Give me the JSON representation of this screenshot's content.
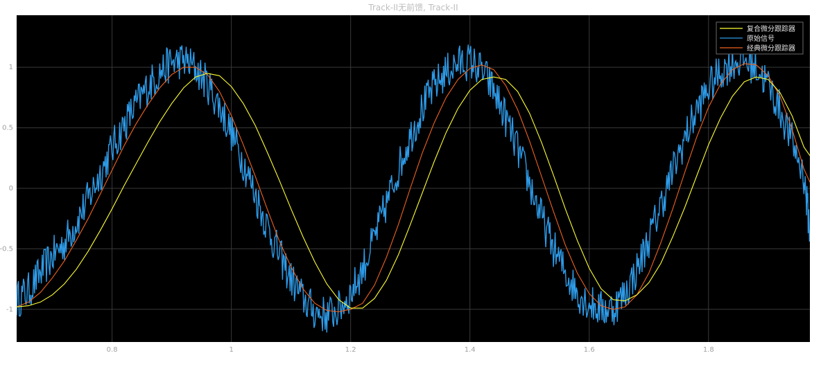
{
  "chart_data": {
    "type": "line",
    "title": "Track-II无前馈, Track-II",
    "xlabel": "",
    "ylabel": "",
    "xlim": [
      0.64,
      1.97
    ],
    "ylim": [
      -1.27,
      1.43
    ],
    "x_ticks": [
      0.8,
      1,
      1.2,
      1.4,
      1.6,
      1.8
    ],
    "x_tick_labels": [
      "0.8",
      "1",
      "1.2",
      "1.4",
      "1.6",
      "1.8"
    ],
    "y_ticks": [
      1,
      0.5,
      0,
      -0.5,
      -1
    ],
    "y_tick_labels": [
      "1",
      "0.5",
      "0",
      "-0.5",
      "-1"
    ],
    "grid": true,
    "legend_position": "top-right",
    "background": "#000000",
    "series": [
      {
        "name": "复合微分跟踪器",
        "color": "#ffff33",
        "x": [
          0.64,
          0.66,
          0.68,
          0.7,
          0.72,
          0.74,
          0.76,
          0.78,
          0.8,
          0.82,
          0.84,
          0.86,
          0.88,
          0.9,
          0.92,
          0.94,
          0.96,
          0.98,
          1.0,
          1.02,
          1.04,
          1.06,
          1.08,
          1.1,
          1.12,
          1.14,
          1.16,
          1.18,
          1.2,
          1.22,
          1.24,
          1.26,
          1.28,
          1.3,
          1.32,
          1.34,
          1.36,
          1.38,
          1.4,
          1.42,
          1.44,
          1.46,
          1.48,
          1.5,
          1.52,
          1.54,
          1.56,
          1.58,
          1.6,
          1.62,
          1.64,
          1.66,
          1.68,
          1.7,
          1.72,
          1.74,
          1.76,
          1.78,
          1.8,
          1.82,
          1.84,
          1.86,
          1.88,
          1.9,
          1.92,
          1.94,
          1.96,
          1.97
        ],
        "y": [
          -0.98,
          -0.97,
          -0.94,
          -0.88,
          -0.79,
          -0.67,
          -0.52,
          -0.35,
          -0.17,
          0.02,
          0.2,
          0.38,
          0.55,
          0.7,
          0.83,
          0.92,
          0.95,
          0.93,
          0.84,
          0.7,
          0.52,
          0.3,
          0.07,
          -0.17,
          -0.4,
          -0.61,
          -0.79,
          -0.92,
          -0.99,
          -0.99,
          -0.91,
          -0.76,
          -0.55,
          -0.3,
          -0.04,
          0.22,
          0.46,
          0.66,
          0.81,
          0.9,
          0.92,
          0.9,
          0.8,
          0.62,
          0.38,
          0.11,
          -0.17,
          -0.43,
          -0.66,
          -0.83,
          -0.92,
          -0.93,
          -0.88,
          -0.78,
          -0.62,
          -0.4,
          -0.16,
          0.1,
          0.36,
          0.58,
          0.76,
          0.88,
          0.92,
          0.9,
          0.79,
          0.6,
          0.34,
          0.27
        ]
      },
      {
        "name": "原始信号",
        "color": "#2e9be8",
        "x": [
          0.64,
          0.66,
          0.68,
          0.7,
          0.72,
          0.74,
          0.76,
          0.78,
          0.8,
          0.82,
          0.84,
          0.86,
          0.88,
          0.9,
          0.92,
          0.94,
          0.96,
          0.98,
          1.0,
          1.02,
          1.04,
          1.06,
          1.08,
          1.1,
          1.12,
          1.14,
          1.16,
          1.18,
          1.2,
          1.22,
          1.24,
          1.26,
          1.28,
          1.3,
          1.32,
          1.34,
          1.36,
          1.38,
          1.4,
          1.42,
          1.44,
          1.46,
          1.48,
          1.5,
          1.52,
          1.54,
          1.56,
          1.58,
          1.6,
          1.62,
          1.64,
          1.66,
          1.68,
          1.7,
          1.72,
          1.74,
          1.76,
          1.78,
          1.8,
          1.82,
          1.84,
          1.86,
          1.88,
          1.9,
          1.92,
          1.94,
          1.96,
          1.97
        ],
        "y": [
          -0.92,
          -0.85,
          -0.7,
          -0.56,
          -0.45,
          -0.28,
          -0.09,
          0.12,
          0.33,
          0.52,
          0.69,
          0.84,
          0.96,
          1.04,
          1.06,
          0.99,
          0.86,
          0.68,
          0.46,
          0.22,
          -0.05,
          -0.31,
          -0.55,
          -0.75,
          -0.91,
          -1.02,
          -1.05,
          -1.0,
          -0.87,
          -0.67,
          -0.41,
          -0.13,
          0.16,
          0.43,
          0.66,
          0.84,
          0.96,
          1.03,
          1.05,
          0.97,
          0.81,
          0.58,
          0.32,
          0.04,
          -0.24,
          -0.49,
          -0.7,
          -0.86,
          -0.95,
          -1.0,
          -0.99,
          -0.87,
          -0.67,
          -0.42,
          -0.14,
          0.14,
          0.41,
          0.64,
          0.83,
          0.96,
          1.04,
          1.06,
          1.0,
          0.86,
          0.65,
          0.39,
          0.1,
          -0.35
        ]
      },
      {
        "name": "经典微分跟踪器",
        "color": "#f0621f",
        "x": [
          0.64,
          0.66,
          0.68,
          0.7,
          0.72,
          0.74,
          0.76,
          0.78,
          0.8,
          0.82,
          0.84,
          0.86,
          0.88,
          0.9,
          0.92,
          0.94,
          0.96,
          0.98,
          1.0,
          1.02,
          1.04,
          1.06,
          1.08,
          1.1,
          1.12,
          1.14,
          1.16,
          1.18,
          1.2,
          1.22,
          1.24,
          1.26,
          1.28,
          1.3,
          1.32,
          1.34,
          1.36,
          1.38,
          1.4,
          1.42,
          1.44,
          1.46,
          1.48,
          1.5,
          1.52,
          1.54,
          1.56,
          1.58,
          1.6,
          1.62,
          1.64,
          1.66,
          1.68,
          1.7,
          1.72,
          1.74,
          1.76,
          1.78,
          1.8,
          1.82,
          1.84,
          1.86,
          1.88,
          1.9,
          1.92,
          1.94,
          1.96,
          1.97
        ],
        "y": [
          -0.98,
          -0.94,
          -0.86,
          -0.74,
          -0.6,
          -0.43,
          -0.25,
          -0.05,
          0.15,
          0.35,
          0.53,
          0.69,
          0.83,
          0.94,
          1.0,
          1.0,
          0.94,
          0.8,
          0.6,
          0.36,
          0.1,
          -0.17,
          -0.43,
          -0.65,
          -0.83,
          -0.95,
          -1.01,
          -1.02,
          -1.0,
          -0.95,
          -0.8,
          -0.57,
          -0.3,
          0.0,
          0.29,
          0.54,
          0.75,
          0.9,
          0.99,
          1.02,
          0.98,
          0.85,
          0.65,
          0.39,
          0.1,
          -0.19,
          -0.47,
          -0.7,
          -0.87,
          -0.97,
          -1.0,
          -0.98,
          -0.88,
          -0.7,
          -0.45,
          -0.17,
          0.13,
          0.42,
          0.67,
          0.86,
          0.98,
          1.03,
          1.02,
          0.93,
          0.76,
          0.49,
          0.16,
          0.05
        ]
      }
    ]
  }
}
